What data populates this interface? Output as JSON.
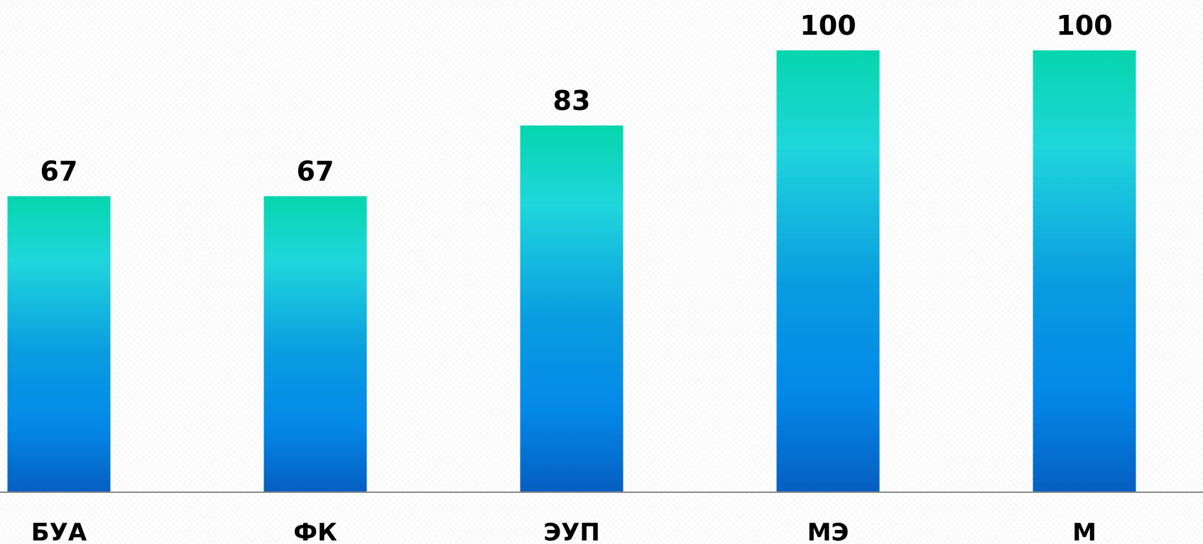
{
  "chart_data": {
    "type": "bar",
    "categories": [
      "БУА",
      "ФК",
      "ЭУП",
      "МЭ",
      "М"
    ],
    "values": [
      67,
      67,
      83,
      100,
      100
    ],
    "title": "",
    "xlabel": "",
    "ylabel": "",
    "ylim": [
      0,
      100
    ],
    "grid": false,
    "legend": "none",
    "data_labels": true,
    "colors": {
      "bar_top": "#05d6ad",
      "bar_upper": "#1fd6dc",
      "bar_middle": "#0a9de0",
      "bar_lower": "#0388e8",
      "bar_bottom": "#055fc0",
      "axis": "#8a8a8a",
      "text": "#000000"
    }
  }
}
